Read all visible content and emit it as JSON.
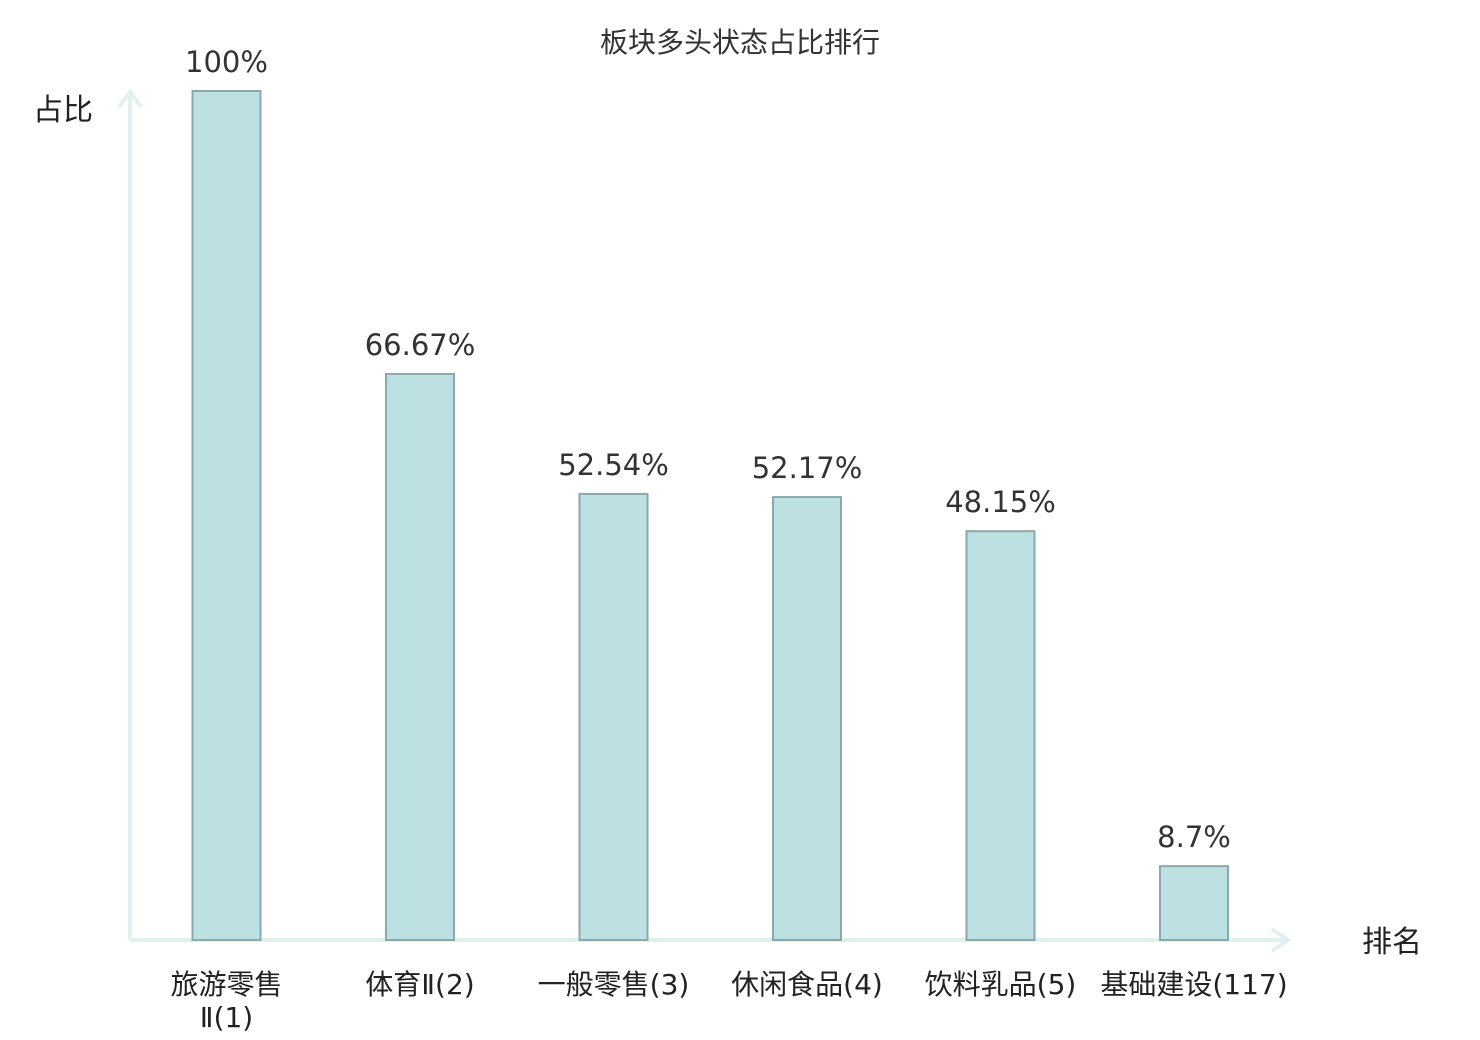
{
  "chart_data": {
    "type": "bar",
    "title": "板块多头状态占比排行",
    "ylabel": "占比",
    "xlabel": "排名",
    "ylim": [
      0,
      100
    ],
    "grid": false,
    "categories": [
      {
        "lines": [
          "旅游零售",
          "Ⅱ(1)"
        ],
        "highlight": false
      },
      {
        "lines": [
          "体育Ⅱ(2)"
        ],
        "highlight": false
      },
      {
        "lines": [
          "一般零售(3)"
        ],
        "highlight": false
      },
      {
        "lines": [
          "休闲食品(4)"
        ],
        "highlight": false
      },
      {
        "lines": [
          "饮料乳品(5)"
        ],
        "highlight": false
      },
      {
        "lines": [
          "基础建设(117)"
        ],
        "highlight": true
      }
    ],
    "values": [
      100,
      66.67,
      52.54,
      52.17,
      48.15,
      8.7
    ],
    "value_labels": [
      "100%",
      "66.67%",
      "52.54%",
      "52.17%",
      "48.15%",
      "8.7%"
    ],
    "colors": {
      "bar_fill": "#bde0e2",
      "bar_stroke": "#8aa9ad",
      "axis": "#e0f1ef",
      "text": "#222222",
      "highlight_text": "#e8141a"
    }
  }
}
